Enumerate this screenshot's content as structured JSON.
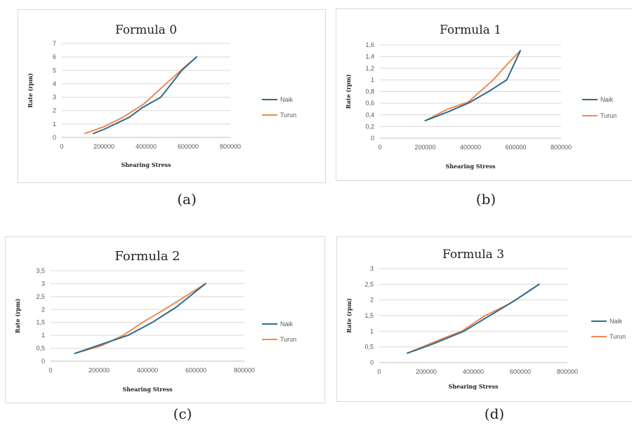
{
  "colors": {
    "naik": "#2e6b8e",
    "turun": "#ee8a4e",
    "grid": "#d9d9d9",
    "border": "#d9d9d9"
  },
  "captions": [
    "(a)",
    "(b)",
    "(c)",
    "(d)"
  ],
  "chart_data": [
    {
      "type": "line",
      "title": "Formula 0",
      "xlabel": "Shearing Stress",
      "ylabel": "Rate (rpm)",
      "xlim": [
        0,
        800000
      ],
      "ylim": [
        0,
        7
      ],
      "x_ticks": [
        "0",
        "200000",
        "400000",
        "600000",
        "800000"
      ],
      "y_ticks": [
        "0",
        "1",
        "2",
        "3",
        "4",
        "5",
        "6",
        "7"
      ],
      "grid": "horizontal",
      "legend": "right",
      "series": [
        {
          "name": "Naik",
          "color": "#2e6b8e",
          "points": [
            [
              150000,
              0.3
            ],
            [
              200000,
              0.6
            ],
            [
              320000,
              1.5
            ],
            [
              380000,
              2.2
            ],
            [
              470000,
              3
            ],
            [
              570000,
              5
            ],
            [
              640000,
              6
            ]
          ]
        },
        {
          "name": "Turun",
          "color": "#ee8a4e",
          "points": [
            [
              110000,
              0.3
            ],
            [
              200000,
              0.8
            ],
            [
              290000,
              1.5
            ],
            [
              390000,
              2.5
            ],
            [
              480000,
              3.8
            ],
            [
              580000,
              5.2
            ],
            [
              640000,
              6
            ]
          ]
        }
      ]
    },
    {
      "type": "line",
      "title": "Formula 1",
      "xlabel": "Shearing Stress",
      "ylabel": "Rate (rpm)",
      "xlim": [
        0,
        800000
      ],
      "ylim": [
        0,
        1.6
      ],
      "x_ticks": [
        "0",
        "200000",
        "400000",
        "600000",
        "800000"
      ],
      "y_ticks": [
        "0",
        "0,2",
        "0,4",
        "0,6",
        "0,8",
        "1",
        "1,2",
        "1,4",
        "1,6"
      ],
      "grid": "horizontal",
      "legend": "right",
      "series": [
        {
          "name": "Naik",
          "color": "#2e6b8e",
          "points": [
            [
              200000,
              0.3
            ],
            [
              300000,
              0.45
            ],
            [
              390000,
              0.6
            ],
            [
              480000,
              0.8
            ],
            [
              560000,
              1.0
            ],
            [
              620000,
              1.5
            ]
          ]
        },
        {
          "name": "Turun",
          "color": "#ee8a4e",
          "points": [
            [
              200000,
              0.3
            ],
            [
              300000,
              0.5
            ],
            [
              390000,
              0.62
            ],
            [
              500000,
              1.0
            ],
            [
              570000,
              1.3
            ],
            [
              620000,
              1.5
            ]
          ]
        }
      ]
    },
    {
      "type": "line",
      "title": "Formula 2",
      "xlabel": "Shearing Stress",
      "ylabel": "Rate (rpm)",
      "xlim": [
        0,
        800000
      ],
      "ylim": [
        0,
        3.5
      ],
      "x_ticks": [
        "0",
        "200000",
        "400000",
        "600000",
        "800000"
      ],
      "y_ticks": [
        "0",
        "0,5",
        "1",
        "1,5",
        "2",
        "2,5",
        "3",
        "3,5"
      ],
      "grid": "horizontal",
      "legend": "right",
      "series": [
        {
          "name": "Naik",
          "color": "#2e6b8e",
          "points": [
            [
              100000,
              0.3
            ],
            [
              210000,
              0.65
            ],
            [
              320000,
              1.0
            ],
            [
              420000,
              1.5
            ],
            [
              520000,
              2.1
            ],
            [
              640000,
              3.0
            ]
          ]
        },
        {
          "name": "Turun",
          "color": "#ee8a4e",
          "points": [
            [
              100000,
              0.3
            ],
            [
              210000,
              0.6
            ],
            [
              300000,
              1.0
            ],
            [
              380000,
              1.5
            ],
            [
              470000,
              2.0
            ],
            [
              640000,
              3.0
            ]
          ]
        }
      ]
    },
    {
      "type": "line",
      "title": "Formula 3",
      "xlabel": "Shearing Stress",
      "ylabel": "Rate (rpm)",
      "xlim": [
        0,
        800000
      ],
      "ylim": [
        0,
        3
      ],
      "x_ticks": [
        "0",
        "200000",
        "400000",
        "600000",
        "800000"
      ],
      "y_ticks": [
        "0",
        "0,5",
        "1",
        "1,5",
        "2",
        "2,5",
        "3"
      ],
      "grid": "horizontal",
      "legend": "right",
      "series": [
        {
          "name": "Naik",
          "color": "#2e6b8e",
          "points": [
            [
              120000,
              0.3
            ],
            [
              230000,
              0.6
            ],
            [
              360000,
              1.0
            ],
            [
              470000,
              1.5
            ],
            [
              580000,
              2.0
            ],
            [
              680000,
              2.5
            ]
          ]
        },
        {
          "name": "Turun",
          "color": "#ee8a4e",
          "points": [
            [
              120000,
              0.3
            ],
            [
              230000,
              0.65
            ],
            [
              350000,
              1.0
            ],
            [
              450000,
              1.5
            ],
            [
              560000,
              1.9
            ],
            [
              680000,
              2.5
            ]
          ]
        }
      ]
    }
  ]
}
